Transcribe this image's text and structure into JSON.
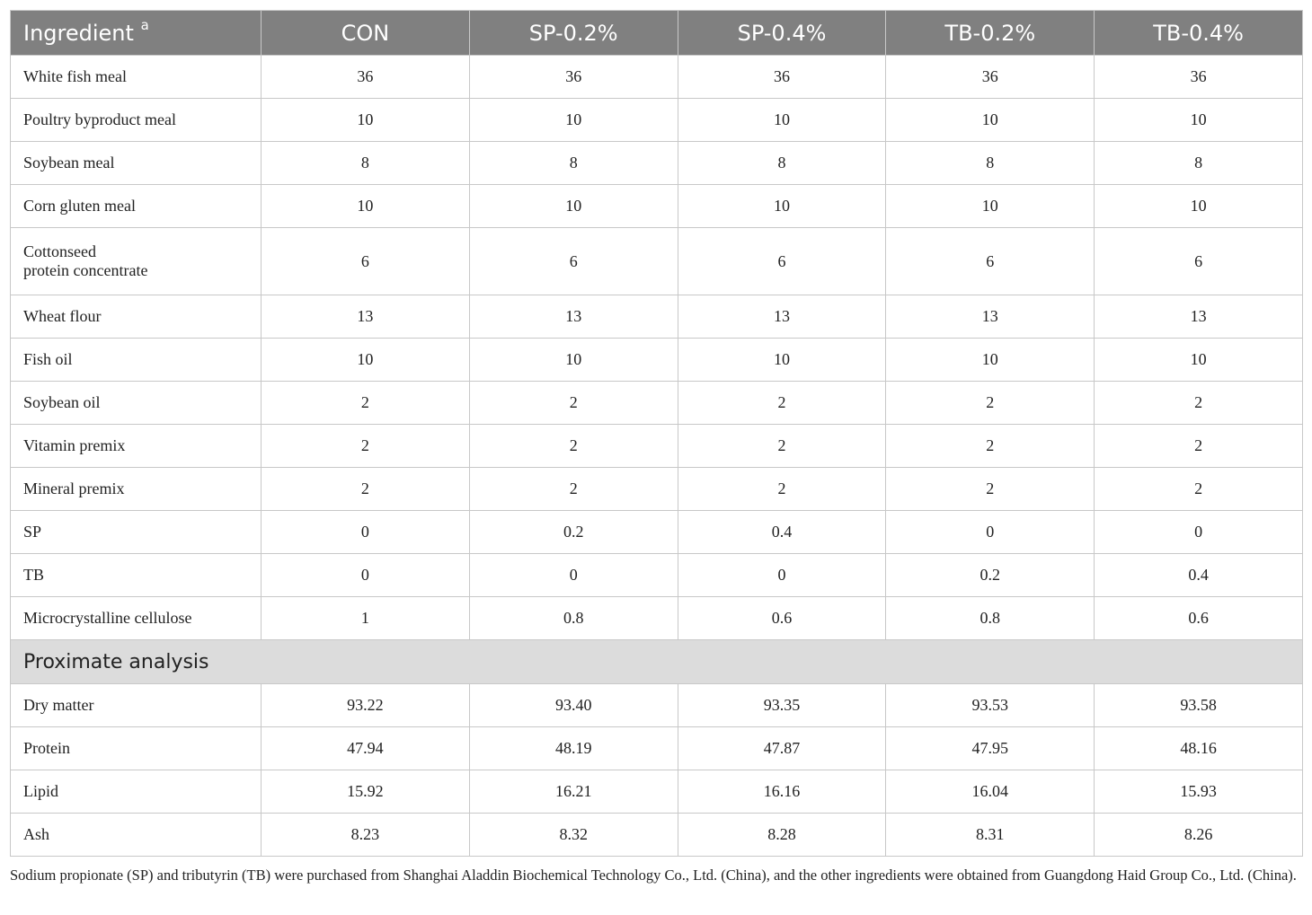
{
  "table": {
    "header": {
      "ingredient_label": "Ingredient",
      "ingredient_sup": "a",
      "columns": [
        "CON",
        "SP-0.2%",
        "SP-0.4%",
        "TB-0.2%",
        "TB-0.4%"
      ]
    },
    "ingredient_rows": [
      {
        "label": "White fish meal",
        "values": [
          "36",
          "36",
          "36",
          "36",
          "36"
        ]
      },
      {
        "label": "Poultry byproduct meal",
        "values": [
          "10",
          "10",
          "10",
          "10",
          "10"
        ]
      },
      {
        "label": "Soybean meal",
        "values": [
          "8",
          "8",
          "8",
          "8",
          "8"
        ]
      },
      {
        "label": "Corn gluten meal",
        "values": [
          "10",
          "10",
          "10",
          "10",
          "10"
        ]
      },
      {
        "label_line1": "Cottonseed",
        "label_line2": "protein concentrate",
        "values": [
          "6",
          "6",
          "6",
          "6",
          "6"
        ]
      },
      {
        "label": "Wheat flour",
        "values": [
          "13",
          "13",
          "13",
          "13",
          "13"
        ]
      },
      {
        "label": "Fish oil",
        "values": [
          "10",
          "10",
          "10",
          "10",
          "10"
        ]
      },
      {
        "label": "Soybean oil",
        "values": [
          "2",
          "2",
          "2",
          "2",
          "2"
        ]
      },
      {
        "label": "Vitamin premix",
        "values": [
          "2",
          "2",
          "2",
          "2",
          "2"
        ]
      },
      {
        "label": "Mineral premix",
        "values": [
          "2",
          "2",
          "2",
          "2",
          "2"
        ]
      },
      {
        "label": "SP",
        "values": [
          "0",
          "0.2",
          "0.4",
          "0",
          "0"
        ]
      },
      {
        "label": "TB",
        "values": [
          "0",
          "0",
          "0",
          "0.2",
          "0.4"
        ]
      },
      {
        "label": "Microcrystalline cellulose",
        "values": [
          "1",
          "0.8",
          "0.6",
          "0.8",
          "0.6"
        ]
      }
    ],
    "section_label": "Proximate analysis",
    "analysis_rows": [
      {
        "label": "Dry matter",
        "values": [
          "93.22",
          "93.40",
          "93.35",
          "93.53",
          "93.58"
        ]
      },
      {
        "label": "Protein",
        "values": [
          "47.94",
          "48.19",
          "47.87",
          "47.95",
          "48.16"
        ]
      },
      {
        "label": "Lipid",
        "values": [
          "15.92",
          "16.21",
          "16.16",
          "16.04",
          "15.93"
        ]
      },
      {
        "label": "Ash",
        "values": [
          "8.23",
          "8.32",
          "8.28",
          "8.31",
          "8.26"
        ]
      }
    ]
  },
  "footnote": "Sodium propionate (SP) and tributyrin (TB) were purchased from Shanghai Aladdin Biochemical Technology Co., Ltd. (China), and the other ingredients were obtained from Guangdong Haid Group Co., Ltd. (China).",
  "colors": {
    "header_bg": "#808080",
    "header_text": "#ffffff",
    "section_bg": "#dcdcdc",
    "border": "#c8c8c8"
  }
}
